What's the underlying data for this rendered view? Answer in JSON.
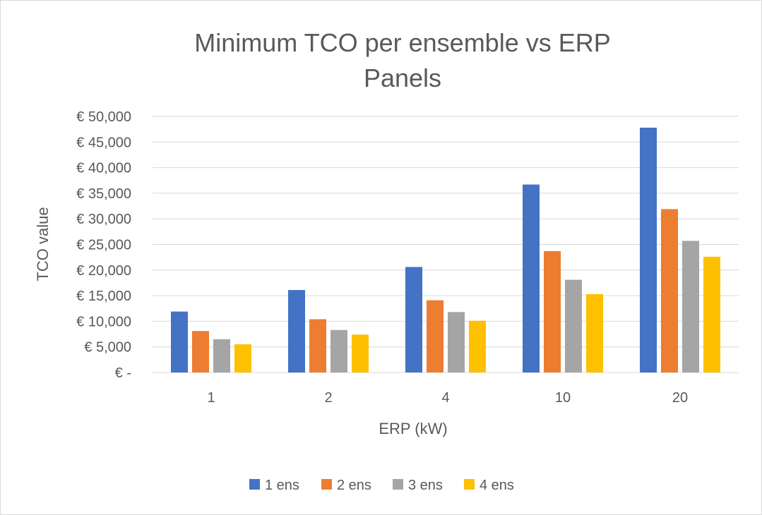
{
  "chart_data": {
    "type": "bar",
    "title_lines": [
      "Minimum TCO per ensemble vs ERP",
      "Panels"
    ],
    "xlabel": "ERP (kW)",
    "ylabel": "TCO value",
    "categories": [
      "1",
      "2",
      "4",
      "10",
      "20"
    ],
    "ylim": [
      0,
      50000
    ],
    "yticks": [
      0,
      5000,
      10000,
      15000,
      20000,
      25000,
      30000,
      35000,
      40000,
      45000,
      50000
    ],
    "ytick_labels": [
      "€ -",
      "€ 5,000",
      "€ 10,000",
      "€ 15,000",
      "€ 20,000",
      "€ 25,000",
      "€ 30,000",
      "€ 35,000",
      "€ 40,000",
      "€ 45,000",
      "€ 50,000"
    ],
    "grid": true,
    "legend_position": "bottom",
    "series": [
      {
        "name": "1 ens",
        "color": "#4472c4",
        "values": [
          11900,
          16100,
          20600,
          36700,
          47800
        ]
      },
      {
        "name": "2 ens",
        "color": "#ed7d31",
        "values": [
          8100,
          10400,
          14100,
          23700,
          31900
        ]
      },
      {
        "name": "3 ens",
        "color": "#a5a5a5",
        "values": [
          6500,
          8300,
          11800,
          18100,
          25700
        ]
      },
      {
        "name": "4 ens",
        "color": "#ffc000",
        "values": [
          5500,
          7400,
          10100,
          15300,
          22600
        ]
      }
    ]
  }
}
